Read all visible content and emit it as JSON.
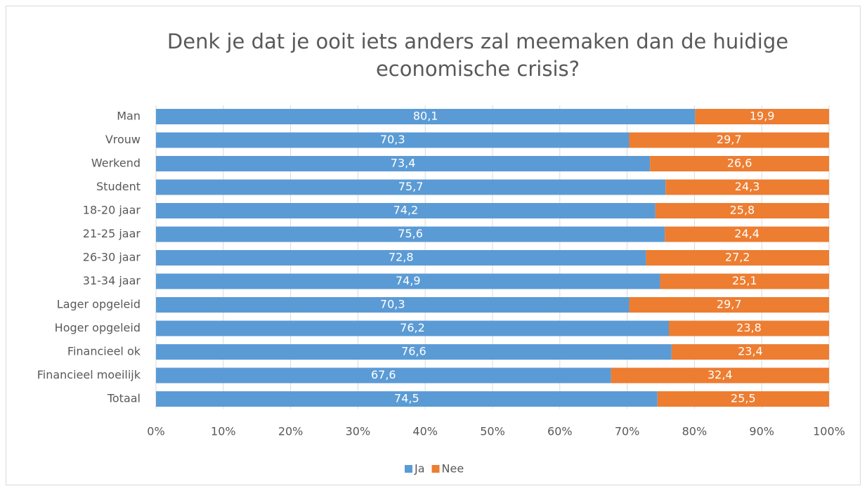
{
  "chart_data": {
    "type": "stacked-bar-horizontal",
    "title": "Denk je dat je ooit iets anders zal meemaken dan de huidige economische crisis?",
    "categories": [
      "Man",
      "Vrouw",
      "Werkend",
      "Student",
      "18-20 jaar",
      "21-25 jaar",
      "26-30 jaar",
      "31-34 jaar",
      "Lager opgeleid",
      "Hoger opgeleid",
      "Financieel ok",
      "Financieel moeilijk",
      "Totaal"
    ],
    "series": [
      {
        "name": "Ja",
        "color": "#5b9bd5",
        "values": [
          80.1,
          70.3,
          73.4,
          75.7,
          74.2,
          75.6,
          72.8,
          74.9,
          70.3,
          76.2,
          76.6,
          67.6,
          74.5
        ],
        "value_labels": [
          "80,1",
          "70,3",
          "73,4",
          "75,7",
          "74,2",
          "75,6",
          "72,8",
          "74,9",
          "70,3",
          "76,2",
          "76,6",
          "67,6",
          "74,5"
        ]
      },
      {
        "name": "Nee",
        "color": "#ed7d31",
        "values": [
          19.9,
          29.7,
          26.6,
          24.3,
          25.8,
          24.4,
          27.2,
          25.1,
          29.7,
          23.8,
          23.4,
          32.4,
          25.5
        ],
        "value_labels": [
          "19,9",
          "29,7",
          "26,6",
          "24,3",
          "25,8",
          "24,4",
          "27,2",
          "25,1",
          "29,7",
          "23,8",
          "23,4",
          "32,4",
          "25,5"
        ]
      }
    ],
    "xlim": [
      0,
      100
    ],
    "xticks": [
      {
        "value": 0,
        "label": "0%"
      },
      {
        "value": 10,
        "label": "10%"
      },
      {
        "value": 20,
        "label": "20%"
      },
      {
        "value": 30,
        "label": "30%"
      },
      {
        "value": 40,
        "label": "40%"
      },
      {
        "value": 50,
        "label": "50%"
      },
      {
        "value": 60,
        "label": "60%"
      },
      {
        "value": 70,
        "label": "70%"
      },
      {
        "value": 80,
        "label": "80%"
      },
      {
        "value": 90,
        "label": "90%"
      },
      {
        "value": 100,
        "label": "100%"
      }
    ],
    "grid": true,
    "legend": "bottom"
  }
}
